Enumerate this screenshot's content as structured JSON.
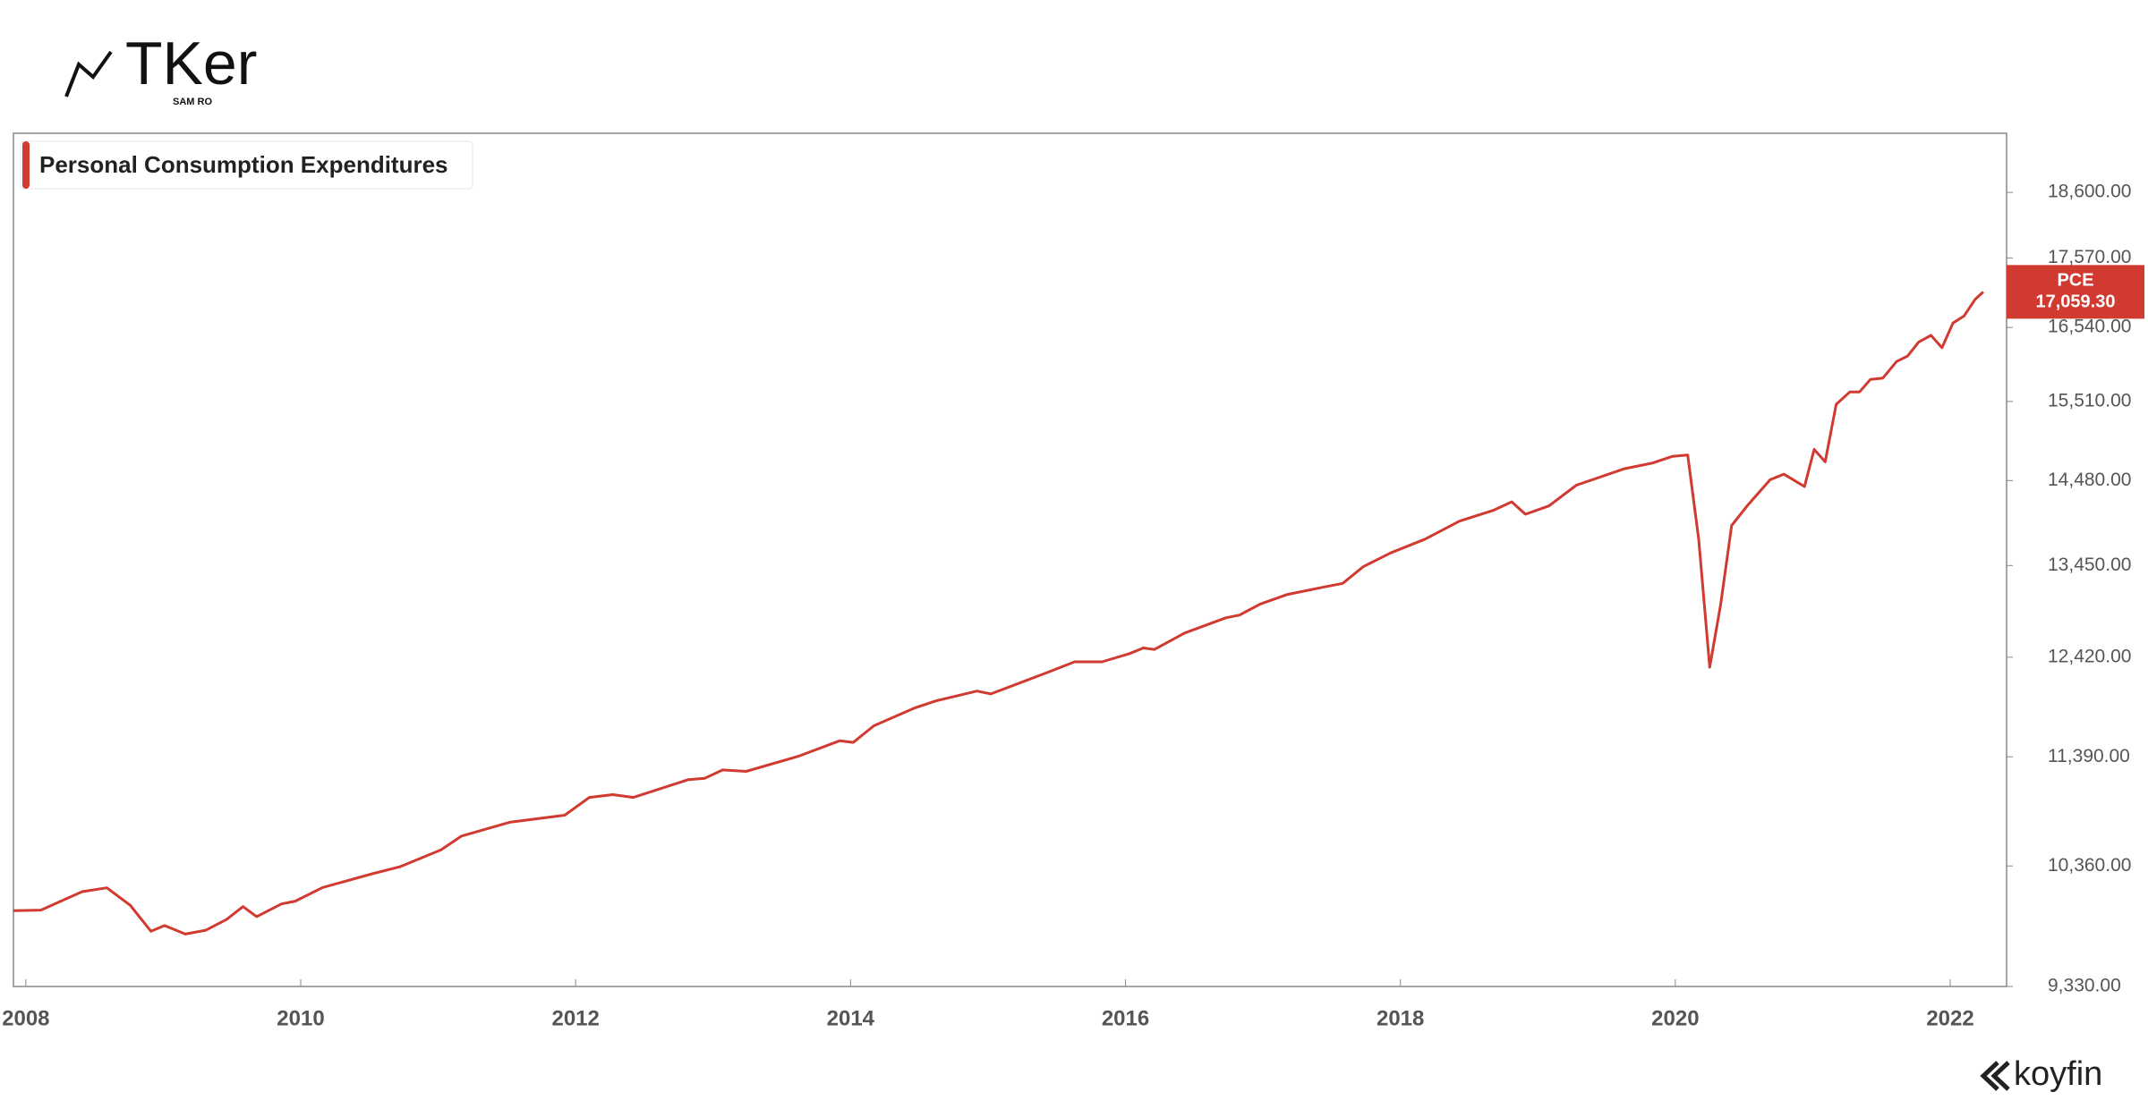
{
  "logo": {
    "name": "TKer",
    "author": "SAM RO"
  },
  "footer": "koyfin",
  "chart_data": {
    "type": "line",
    "yscale": "log",
    "grid": false,
    "legend": "top-left",
    "xlim": [
      2007.91,
      2022.41
    ],
    "xticks": [
      2008,
      2010,
      2012,
      2014,
      2016,
      2018,
      2020,
      2022
    ],
    "ylim": [
      9330,
      19580
    ],
    "yticks": [
      {
        "value": 9330,
        "label": "9,330.00"
      },
      {
        "value": 10360,
        "label": "10,360.00"
      },
      {
        "value": 11390,
        "label": "11,390.00"
      },
      {
        "value": 12420,
        "label": "12,420.00"
      },
      {
        "value": 13450,
        "label": "13,450.00"
      },
      {
        "value": 14480,
        "label": "14,480.00"
      },
      {
        "value": 15510,
        "label": "15,510.00"
      },
      {
        "value": 16540,
        "label": "16,540.00"
      },
      {
        "value": 17570,
        "label": "17,570.00"
      },
      {
        "value": 18600,
        "label": "18,600.00"
      }
    ],
    "x": [
      2007.91,
      2008.11,
      2008.41,
      2008.59,
      2008.76,
      2008.91,
      2009.01,
      2009.16,
      2009.31,
      2009.46,
      2009.58,
      2009.68,
      2009.86,
      2009.96,
      2010.16,
      2010.52,
      2010.72,
      2011.02,
      2011.17,
      2011.52,
      2011.92,
      2012.1,
      2012.27,
      2012.42,
      2012.82,
      2012.94,
      2013.07,
      2013.24,
      2013.62,
      2013.92,
      2014.02,
      2014.17,
      2014.47,
      2014.62,
      2014.92,
      2015.02,
      2015.42,
      2015.63,
      2015.83,
      2016.03,
      2016.13,
      2016.21,
      2016.43,
      2016.73,
      2016.83,
      2016.98,
      2017.18,
      2017.43,
      2017.58,
      2017.73,
      2017.93,
      2018.18,
      2018.43,
      2018.68,
      2018.81,
      2018.91,
      2019.08,
      2019.28,
      2019.63,
      2019.83,
      2019.98,
      2020.09,
      2020.17,
      2020.25,
      2020.33,
      2020.41,
      2020.53,
      2020.69,
      2020.79,
      2020.94,
      2021.01,
      2021.09,
      2021.17,
      2021.27,
      2021.34,
      2021.42,
      2021.51,
      2021.61,
      2021.69,
      2021.77,
      2021.86,
      2021.94,
      2022.02,
      2022.1,
      2022.18,
      2022.24
    ],
    "series": [
      {
        "name": "Personal Consumption Expenditures",
        "short_name": "PCE",
        "color": "#d03a30",
        "values": [
          9965,
          9970,
          10131,
          10165,
          10012,
          9789,
          9837,
          9765,
          9797,
          9889,
          10000,
          9914,
          10024,
          10048,
          10168,
          10290,
          10352,
          10506,
          10633,
          10761,
          10827,
          10996,
          11022,
          10996,
          11167,
          11180,
          11261,
          11247,
          11396,
          11550,
          11534,
          11702,
          11886,
          11957,
          12060,
          12030,
          12250,
          12370,
          12370,
          12459,
          12520,
          12504,
          12684,
          12852,
          12883,
          13007,
          13117,
          13196,
          13243,
          13436,
          13598,
          13762,
          13978,
          14113,
          14215,
          14062,
          14164,
          14422,
          14630,
          14700,
          14788,
          14806,
          13760,
          12313,
          13001,
          13925,
          14181,
          14490,
          14560,
          14405,
          14877,
          14718,
          15471,
          15640,
          15640,
          15810,
          15829,
          16058,
          16135,
          16330,
          16428,
          16252,
          16604,
          16704,
          16946,
          17059.3
        ],
        "value_labels": [
          null,
          null,
          null,
          null,
          null,
          null,
          null,
          null,
          null,
          null,
          null,
          null,
          null,
          null,
          null,
          null,
          null,
          null,
          null,
          null,
          null,
          null,
          null,
          null,
          null,
          null,
          null,
          null,
          null,
          null,
          null,
          null,
          null,
          null,
          null,
          null,
          null,
          null,
          null,
          null,
          null,
          null,
          null,
          null,
          null,
          null,
          null,
          null,
          null,
          null,
          null,
          null,
          null,
          null,
          null,
          null,
          null,
          null,
          null,
          null,
          null,
          null,
          null,
          null,
          null,
          null,
          null,
          null,
          null,
          null,
          null,
          null,
          null,
          null,
          null,
          null,
          null,
          null,
          null,
          null,
          null,
          null,
          null,
          null,
          null,
          "17,059.30"
        ]
      }
    ]
  }
}
